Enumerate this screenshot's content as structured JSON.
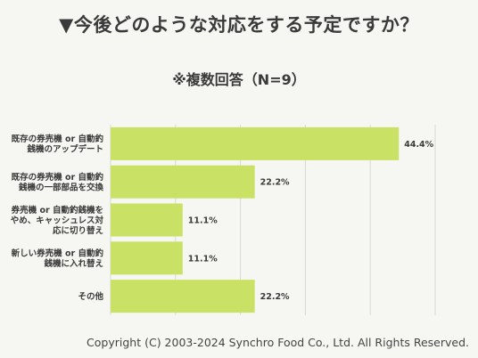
{
  "title": "▼今後どのような対応をする予定ですか？",
  "subtitle": "※複数回答（N=9）",
  "footer": "Copyright (C) 2003-2024  Synchro Food Co., Ltd. All Rights Reserved.",
  "colors": {
    "bar": "#c9e265",
    "grid": "#d9d9d4",
    "text": "#3a3a3a"
  },
  "chart_data": {
    "type": "bar",
    "orientation": "horizontal",
    "categories": [
      [
        "既存の券売機 or 自動釣",
        "銭機のアップデート"
      ],
      [
        "既存の券売機 or 自動釣",
        "銭機の一部部品を交換"
      ],
      [
        "券売機 or 自動釣銭機を",
        "やめ、キャッシュレス対",
        "応に切り替え"
      ],
      [
        "新しい券売機 or 自動釣",
        "銭機に入れ替え"
      ],
      [
        "その他"
      ]
    ],
    "values": [
      44.4,
      22.2,
      11.1,
      11.1,
      22.2
    ],
    "value_labels": [
      "44.4%",
      "22.2%",
      "11.1%",
      "11.1%",
      "22.2%"
    ],
    "xlim": [
      0,
      50
    ],
    "grid": true
  }
}
